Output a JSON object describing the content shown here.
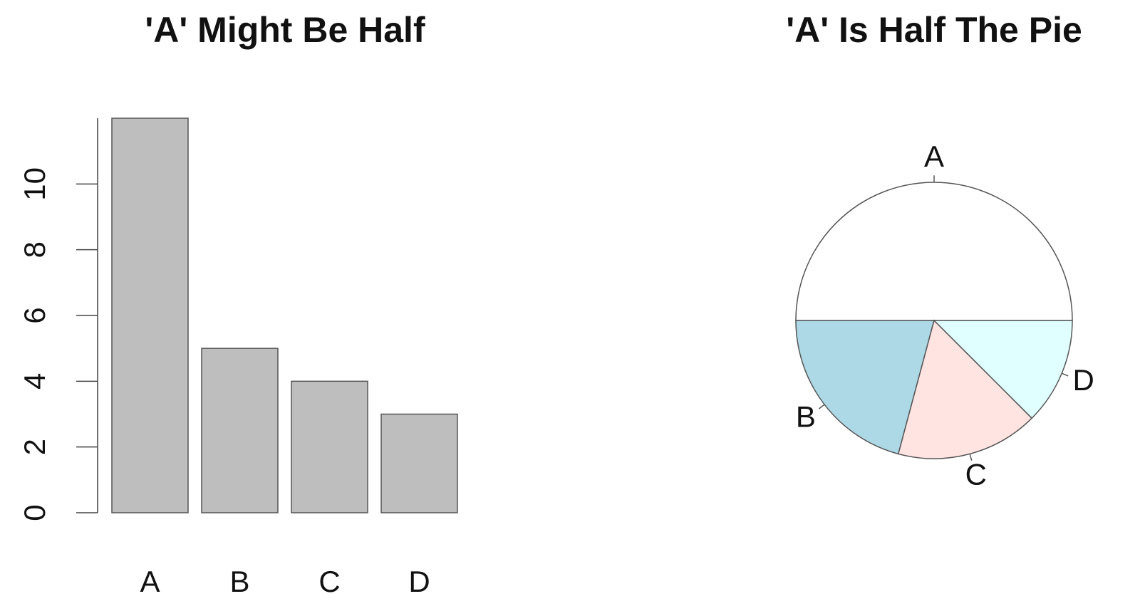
{
  "chart_data": [
    {
      "type": "bar",
      "title": "'A' Might Be Half",
      "categories": [
        "A",
        "B",
        "C",
        "D"
      ],
      "values": [
        12,
        5,
        4,
        3
      ],
      "color": "#bebebe",
      "ylim": [
        0,
        12
      ],
      "yticks": [
        0,
        2,
        4,
        6,
        8,
        10
      ]
    },
    {
      "type": "pie",
      "title": "'A' Is Half The Pie",
      "categories": [
        "A",
        "B",
        "C",
        "D"
      ],
      "values": [
        12,
        5,
        4,
        3
      ],
      "colors": [
        "#ffffff",
        "#add8e6",
        "#ffe4e1",
        "#e0ffff"
      ]
    }
  ]
}
